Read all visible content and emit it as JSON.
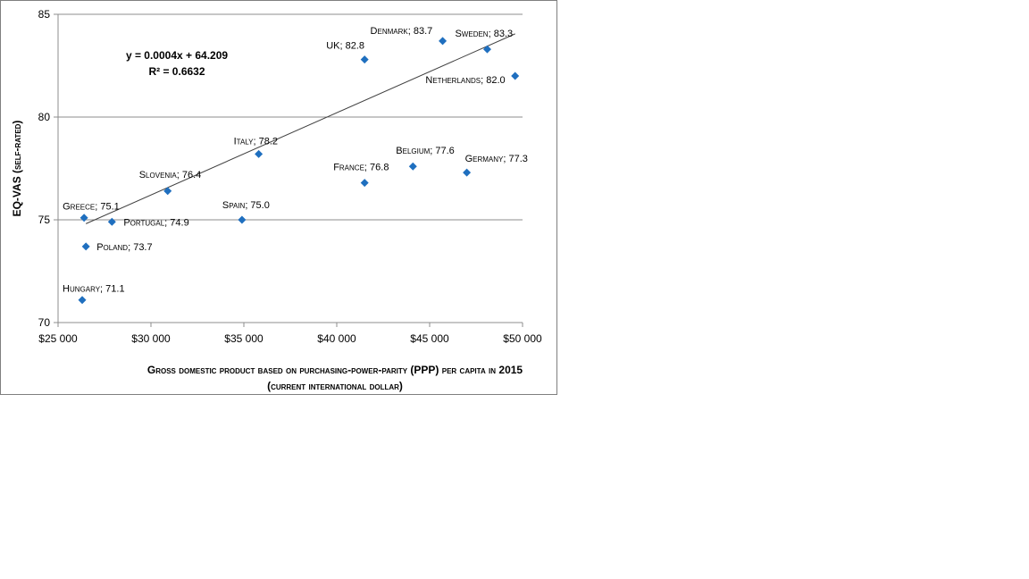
{
  "chart_data": {
    "type": "scatter",
    "title": "",
    "xlabel_lines": [
      "Gross domestic product based on purchasing-power-parity (PPP) per capita in 2015",
      "(current international dollar)"
    ],
    "ylabel": "EQ-VAS (self-rated)",
    "xlim": [
      25000,
      50000
    ],
    "ylim": [
      70,
      85
    ],
    "x_ticks": [
      25000,
      30000,
      35000,
      40000,
      45000,
      50000
    ],
    "x_tick_labels": [
      "$25 000",
      "$30 000",
      "$35 000",
      "$40 000",
      "$45 000",
      "$50 000"
    ],
    "y_ticks": [
      70,
      75,
      80,
      85
    ],
    "y_tick_labels": [
      "70",
      "75",
      "80",
      "85"
    ],
    "grid": "horizontal",
    "marker_color": "#1F6FBF",
    "points": [
      {
        "x": 26300,
        "y": 71.1,
        "label": "Hungary; 71.1",
        "anchor": "start",
        "dx": -22,
        "dy": -9
      },
      {
        "x": 26400,
        "y": 75.1,
        "label": "Greece; 75.1",
        "anchor": "start",
        "dx": -24,
        "dy": -9
      },
      {
        "x": 26500,
        "y": 73.7,
        "label": "Poland; 73.7",
        "anchor": "start",
        "dx": 12,
        "dy": 4
      },
      {
        "x": 27900,
        "y": 74.9,
        "label": "Portugal; 74.9",
        "anchor": "start",
        "dx": 13,
        "dy": 4
      },
      {
        "x": 30900,
        "y": 76.4,
        "label": "Slovenia; 76.4",
        "anchor": "start",
        "dx": -32,
        "dy": -15
      },
      {
        "x": 34900,
        "y": 75.0,
        "label": "Spain; 75.0",
        "anchor": "start",
        "dx": -22,
        "dy": -13
      },
      {
        "x": 35800,
        "y": 78.2,
        "label": "Italy; 78.2",
        "anchor": "start",
        "dx": -28,
        "dy": -11
      },
      {
        "x": 41500,
        "y": 76.8,
        "label": "France; 76.8",
        "anchor": "start",
        "dx": -35,
        "dy": -14
      },
      {
        "x": 41500,
        "y": 82.8,
        "label": "UK; 82.8",
        "anchor": "start",
        "dx": -43,
        "dy": -12
      },
      {
        "x": 44100,
        "y": 77.6,
        "label": "Belgium; 77.6",
        "anchor": "start",
        "dx": -19,
        "dy": -14
      },
      {
        "x": 45700,
        "y": 83.7,
        "label": "Denmark; 83.7",
        "anchor": "start",
        "dx": -81,
        "dy": -8
      },
      {
        "x": 47000,
        "y": 77.3,
        "label": "Germany; 77.3",
        "anchor": "start",
        "dx": -2,
        "dy": -12
      },
      {
        "x": 48100,
        "y": 83.3,
        "label": "Sweden; 83.3",
        "anchor": "start",
        "dx": -36,
        "dy": -14
      },
      {
        "x": 49600,
        "y": 82.0,
        "label": "Netherlands; 82.0",
        "anchor": "end",
        "dx": -11,
        "dy": 8
      }
    ],
    "trendline": {
      "slope": 0.0004,
      "intercept": 64.209,
      "x_range": [
        26500,
        49600
      ]
    },
    "equation_lines": [
      "y = 0.0004x + 64.209",
      "R² = 0.6632"
    ]
  }
}
